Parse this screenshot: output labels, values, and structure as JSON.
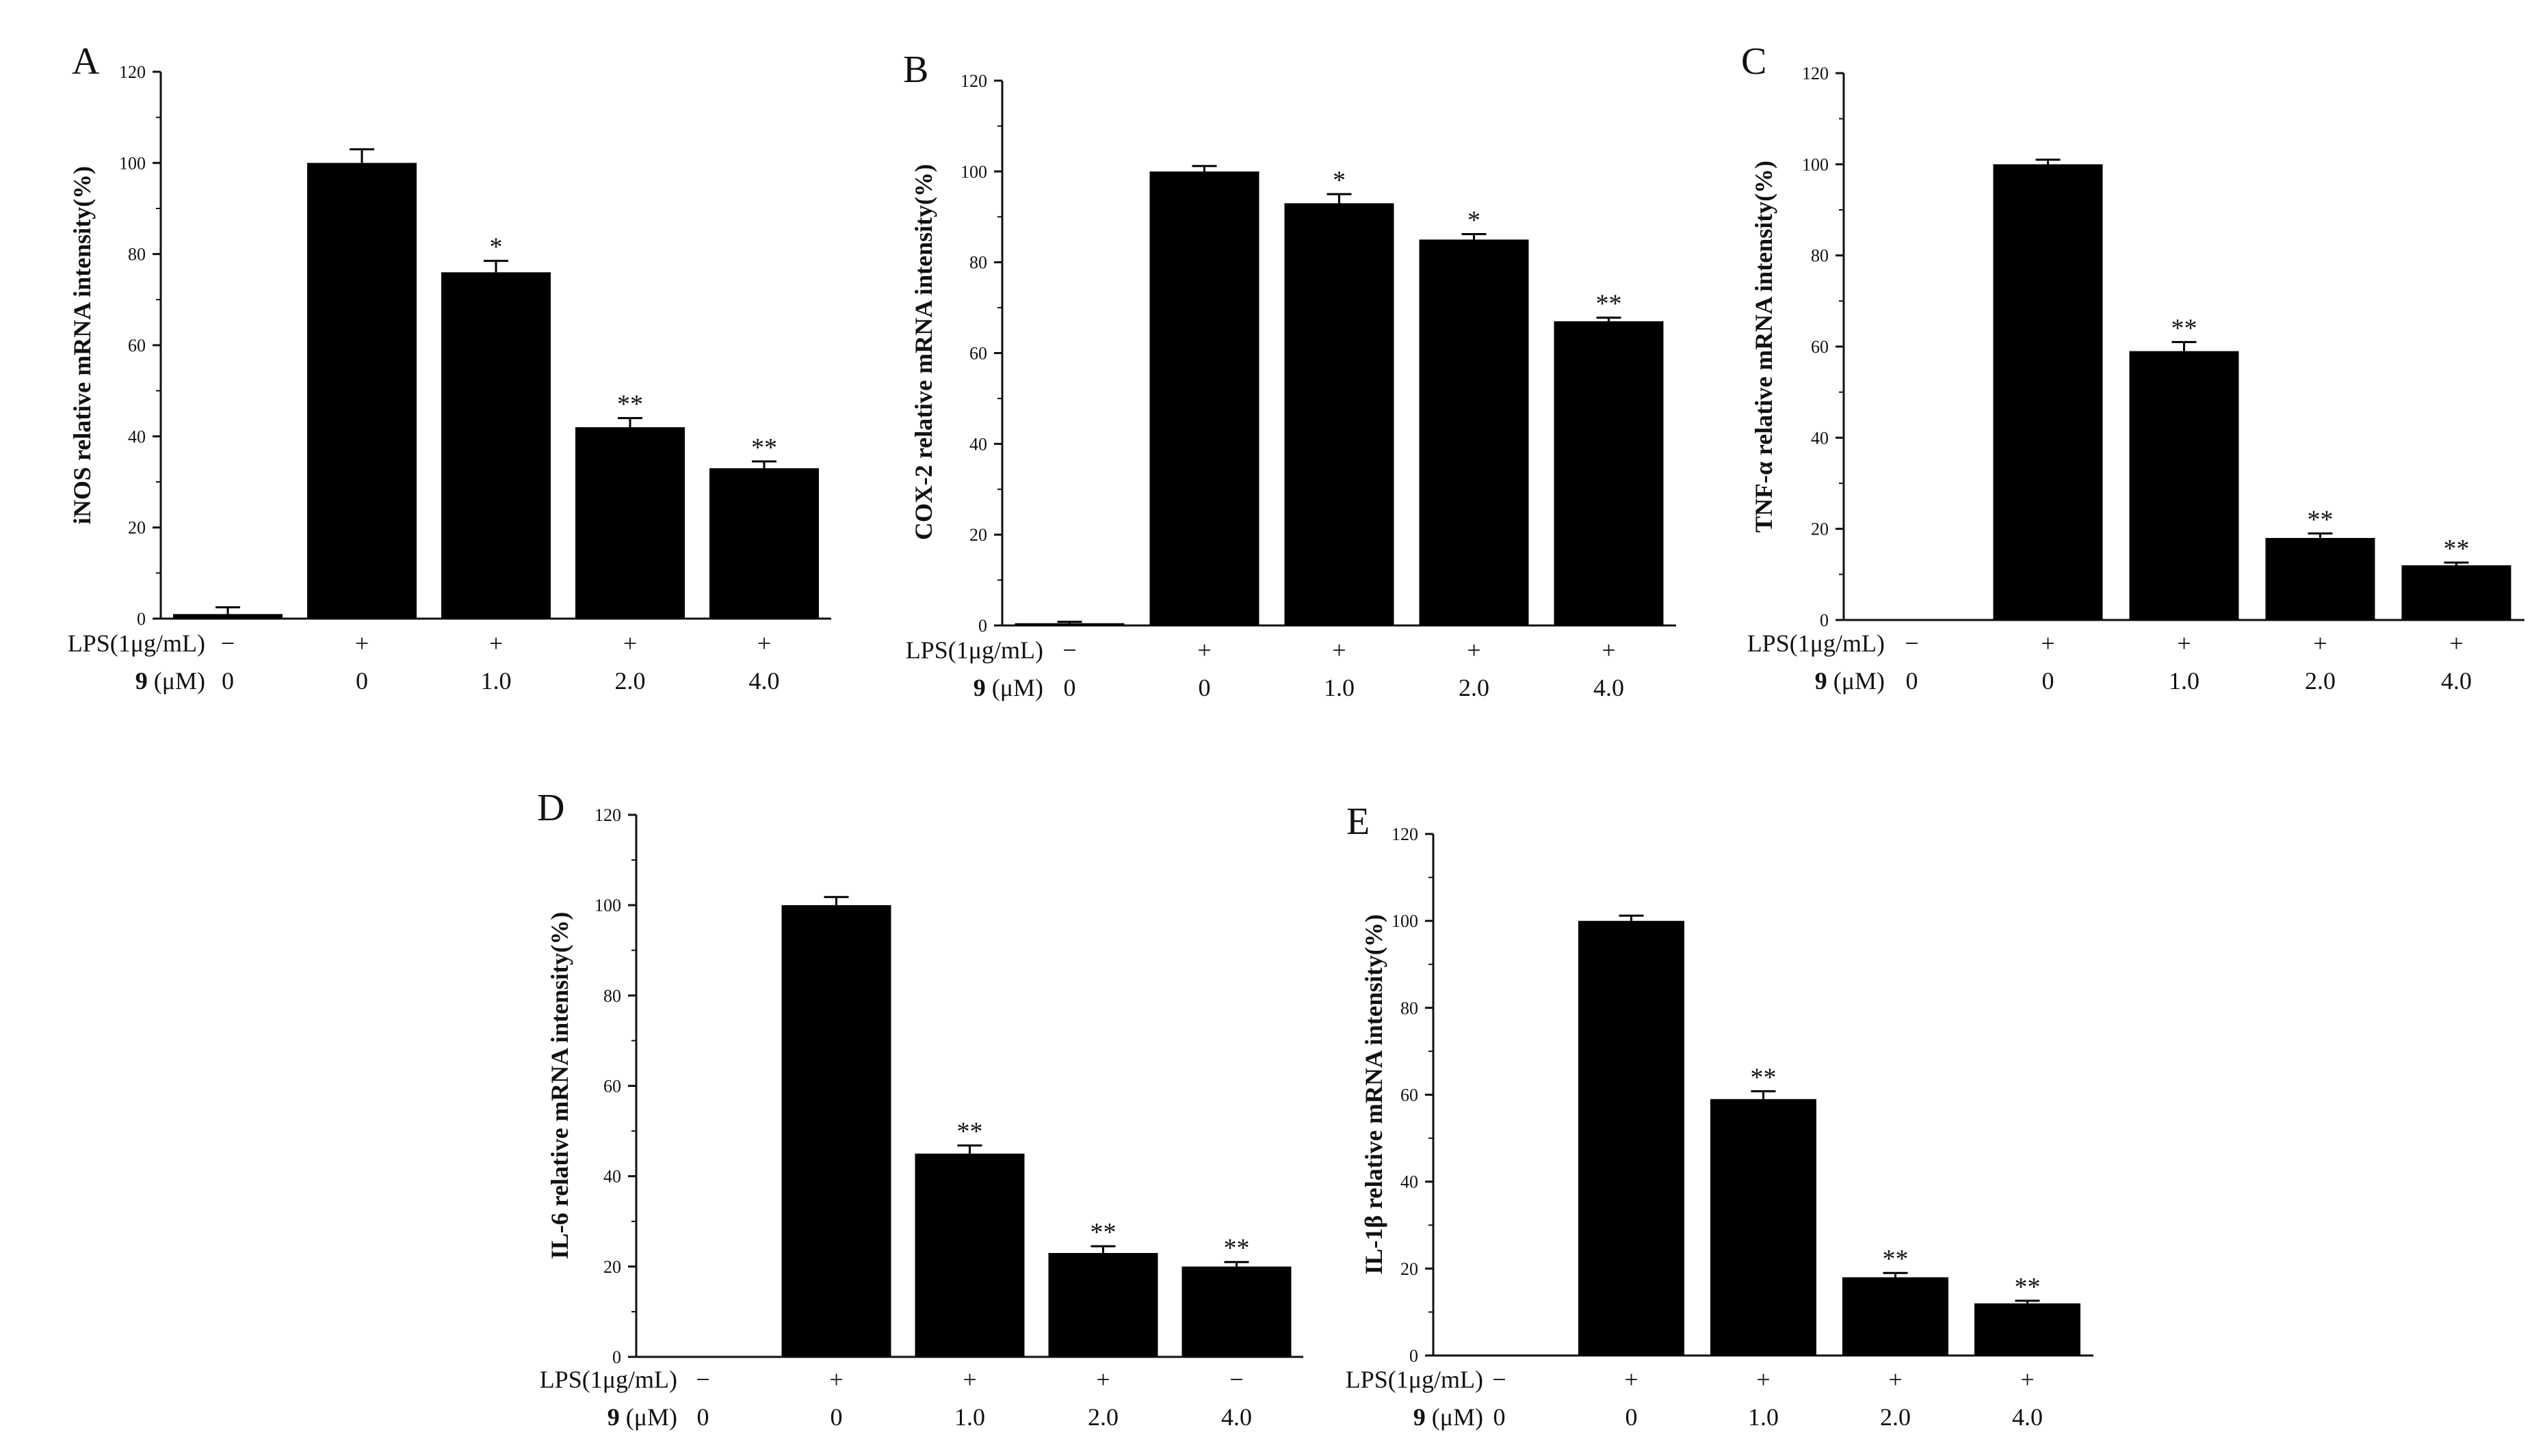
{
  "chart_data": [
    {
      "panel": "A",
      "type": "bar",
      "ylabel": "iNOS relative mRNA intensity(%)",
      "ylim": [
        0,
        120
      ],
      "yticks": [
        "0",
        "20",
        "40",
        "60",
        "80",
        "100",
        "120"
      ],
      "row_labels": {
        "lps": "LPS(1μg/mL)",
        "compound_bold": "9",
        "compound_unit": " (μM)"
      },
      "lps": [
        "−",
        "+",
        "+",
        "+",
        "+"
      ],
      "lps_colors": [
        "#8a8a8a",
        "#2e8b57",
        "#222222",
        "#3a5fcd",
        "#2e8b57"
      ],
      "dose": [
        "0",
        "0",
        "1.0",
        "2.0",
        "4.0"
      ],
      "values": [
        1,
        100,
        76,
        42,
        33
      ],
      "errors": [
        1.5,
        3,
        2.5,
        2,
        1.5
      ],
      "significance": [
        "",
        "",
        "*",
        "**",
        "**"
      ]
    },
    {
      "panel": "B",
      "type": "bar",
      "ylabel": "COX-2 relative mRNA intensity(%)",
      "ylim": [
        0,
        120
      ],
      "yticks": [
        "0",
        "20",
        "40",
        "60",
        "80",
        "100",
        "120"
      ],
      "row_labels": {
        "lps": "LPS(1μg/mL)",
        "compound_bold": "9",
        "compound_unit": " (μM)"
      },
      "lps": [
        "−",
        "+",
        "+",
        "+",
        "+"
      ],
      "lps_colors": [
        "#8a8a8a",
        "#222222",
        "#3a5fcd",
        "#d2691e",
        "#2e8b57"
      ],
      "dose": [
        "0",
        "0",
        "1.0",
        "2.0",
        "4.0"
      ],
      "values": [
        0.5,
        100,
        93,
        85,
        67
      ],
      "errors": [
        0.3,
        1.2,
        2,
        1.2,
        0.8
      ],
      "significance": [
        "",
        "",
        "*",
        "*",
        "**"
      ]
    },
    {
      "panel": "C",
      "type": "bar",
      "ylabel": "TNF-α relative mRNA intensity(%)",
      "ylim": [
        0,
        120
      ],
      "yticks": [
        "0",
        "20",
        "40",
        "60",
        "80",
        "100",
        "120"
      ],
      "row_labels": {
        "lps": "LPS(1μg/mL)",
        "compound_bold": "9",
        "compound_unit": " (μM)"
      },
      "lps": [
        "−",
        "+",
        "+",
        "+",
        "+"
      ],
      "lps_colors": [
        "#8a8a8a",
        "#d2691e",
        "#222222",
        "#3a5fcd",
        "#3a5fcd"
      ],
      "dose": [
        "0",
        "0",
        "1.0",
        "2.0",
        "4.0"
      ],
      "values": [
        0,
        100,
        59,
        18,
        12
      ],
      "errors": [
        0,
        1,
        2,
        1,
        0.6
      ],
      "significance": [
        "",
        "",
        "**",
        "**",
        "**"
      ]
    },
    {
      "panel": "D",
      "type": "bar",
      "ylabel": "IL-6 relative mRNA intensity(%)",
      "ylim": [
        0,
        120
      ],
      "yticks": [
        "0",
        "20",
        "40",
        "60",
        "80",
        "100",
        "120"
      ],
      "row_labels": {
        "lps": "LPS(1μg/mL)",
        "compound_bold": "9",
        "compound_unit": " (μM)"
      },
      "lps": [
        "−",
        "+",
        "+",
        "+",
        "−"
      ],
      "lps_colors": [
        "#222222",
        "#222222",
        "#222222",
        "#222222",
        "#3a5fcd"
      ],
      "dose": [
        "0",
        "0",
        "1.0",
        "2.0",
        "4.0"
      ],
      "values": [
        0,
        100,
        45,
        23,
        20
      ],
      "errors": [
        0,
        1.8,
        1.8,
        1.5,
        1
      ],
      "significance": [
        "",
        "",
        "**",
        "**",
        "**"
      ]
    },
    {
      "panel": "E",
      "type": "bar",
      "ylabel": "IL-1β relative mRNA intensity(%)",
      "ylim": [
        0,
        120
      ],
      "yticks": [
        "0",
        "20",
        "40",
        "60",
        "80",
        "100",
        "120"
      ],
      "row_labels": {
        "lps": "LPS(1μg/mL)",
        "compound_bold": "9",
        "compound_unit": " (μM)"
      },
      "lps": [
        "−",
        "+",
        "+",
        "+",
        "+"
      ],
      "lps_colors": [
        "#8a8a8a",
        "#d2691e",
        "#3a5fcd",
        "#d2691e",
        "#3a5fcd"
      ],
      "dose": [
        "0",
        "0",
        "1.0",
        "2.0",
        "4.0"
      ],
      "values": [
        0,
        100,
        59,
        18,
        12
      ],
      "errors": [
        0,
        1.2,
        1.8,
        1,
        0.6
      ],
      "significance": [
        "",
        "",
        "**",
        "**",
        "**"
      ]
    }
  ]
}
